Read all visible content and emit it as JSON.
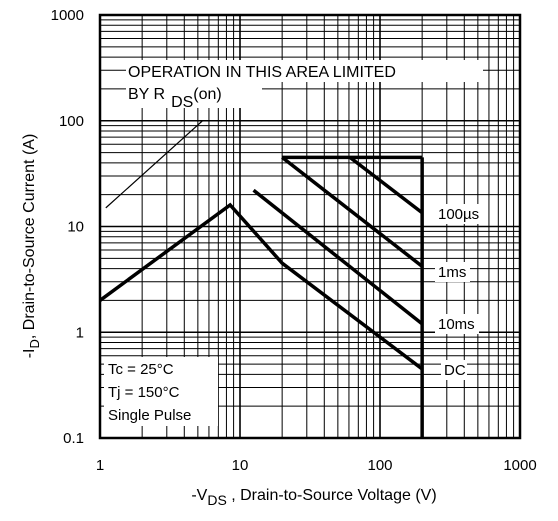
{
  "chart_data": {
    "type": "line",
    "title": "",
    "xlabel": {
      "prefix": "-V",
      "sub": "DS",
      "suffix": " , Drain-to-Source Voltage (V)"
    },
    "ylabel": {
      "prefix": "-I",
      "sub": "D",
      "suffix": ",  Drain-to-Source Current (A)"
    },
    "x_scale": "log",
    "y_scale": "log",
    "xlim": [
      1,
      1000
    ],
    "ylim": [
      0.1,
      1000
    ],
    "x_ticks": [
      {
        "value": 1,
        "label": "1"
      },
      {
        "value": 10,
        "label": "10"
      },
      {
        "value": 100,
        "label": "100"
      },
      {
        "value": 1000,
        "label": "1000"
      }
    ],
    "y_ticks": [
      {
        "value": 0.1,
        "label": "0.1"
      },
      {
        "value": 1,
        "label": "1"
      },
      {
        "value": 10,
        "label": "10"
      },
      {
        "value": 100,
        "label": "100"
      },
      {
        "value": 1000,
        "label": "1000"
      }
    ],
    "grid": true,
    "boundary": {
      "current_limit_A": 45,
      "voltage_limit_V": 200,
      "max_current_voltage_V": 20
    },
    "series": [
      {
        "name": "100µs",
        "x": [
          61,
          200
        ],
        "y": [
          45,
          13.5
        ]
      },
      {
        "name": "1ms",
        "x": [
          20,
          200
        ],
        "y": [
          45,
          4.2
        ]
      },
      {
        "name": "10ms",
        "x": [
          12.5,
          200
        ],
        "y": [
          22,
          1.2
        ]
      },
      {
        "name": "DC",
        "x": [
          1,
          8.5,
          20,
          200
        ],
        "y": [
          2,
          16,
          4.5,
          0.45
        ]
      }
    ],
    "rds_line": {
      "x": [
        1.1,
        5.4
      ],
      "y": [
        15,
        100
      ]
    },
    "annotations": {
      "rds_text_line1": "OPERATION IN THIS AREA LIMITED",
      "rds_text_line2_prefix": "BY R",
      "rds_text_line2_sub": "DS",
      "rds_text_line2_suffix": "(on)",
      "conditions": [
        "Tc = 25°C",
        "Tj = 150°C",
        "Single Pulse"
      ]
    }
  }
}
